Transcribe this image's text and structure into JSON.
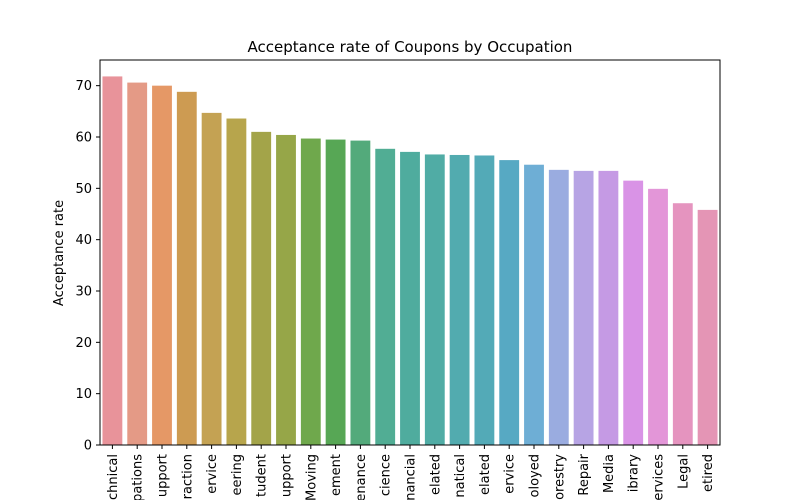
{
  "chart_data": {
    "type": "bar",
    "title": "Acceptance rate of Coupons by Occupation",
    "xlabel": "",
    "ylabel": "Acceptance rate",
    "ylim": [
      0,
      75
    ],
    "yticks": [
      0,
      10,
      20,
      30,
      40,
      50,
      60,
      70
    ],
    "grid": false,
    "categories": [
      "chnical",
      "pations",
      "upport",
      "raction",
      "ervice",
      "eering",
      "tudent",
      "upport",
      "Moving",
      "ement",
      "enance",
      "cience",
      "nancial",
      "elated",
      "natical",
      "elated",
      "ervice",
      "oloyed",
      "orestry",
      "Repair",
      "Media",
      "ibrary",
      "ervices",
      "Legal",
      "etired"
    ],
    "values": [
      71.8,
      70.6,
      70.0,
      68.8,
      64.7,
      63.6,
      61.0,
      60.4,
      59.7,
      59.5,
      59.3,
      57.7,
      57.1,
      56.6,
      56.5,
      56.4,
      55.5,
      54.6,
      53.6,
      53.4,
      53.4,
      51.5,
      49.9,
      47.1,
      45.8
    ],
    "colors": [
      "#e8939a",
      "#e49a86",
      "#e59866",
      "#cd9b52",
      "#c4a253",
      "#b7a54c",
      "#a3a449",
      "#96a648",
      "#6fa84c",
      "#57a755",
      "#53aa7b",
      "#51ad94",
      "#4fac9e",
      "#50aca5",
      "#52abaf",
      "#53aab7",
      "#57a9c3",
      "#6eaed5",
      "#9aace0",
      "#b7a4e4",
      "#c59ae4",
      "#d993e6",
      "#e396d8",
      "#e594bf",
      "#e495b5"
    ]
  }
}
